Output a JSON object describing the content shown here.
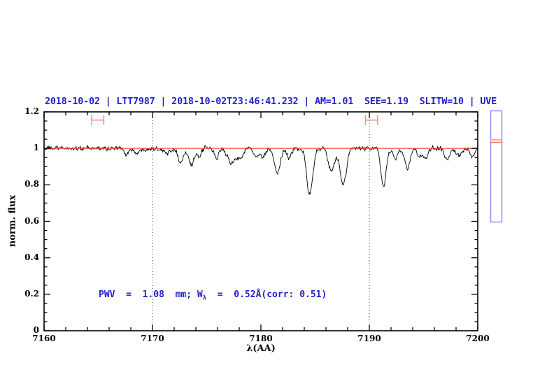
{
  "header": {
    "title": "2018-10-02 | LTT7987 | 2018-10-02T23:46:41.232 | AM=1.01  SEE=1.19  SLITW=10 | UVE"
  },
  "annotation": {
    "prefix": "PWV  =  1.08  mm; W",
    "sub": "λ",
    "suffix": "  =  0.52Å(corr: 0.51)"
  },
  "colors": {
    "title_blue": "#2222cc",
    "annotation_blue": "#2222cc",
    "spectrum_black": "#000000",
    "continuum_red": "#e84545",
    "marker_salmon": "#f08a8a",
    "gridline_gray": "#404040",
    "frame_black": "#000000",
    "panel_border_blue": "#9090f0",
    "panel_line_light": "#ffb4b4",
    "panel_line_strong": "#ff6a6a"
  },
  "chart_data": {
    "type": "line",
    "title": "2018-10-02 | LTT7987 | 2018-10-02T23:46:41.232 | AM=1.01  SEE=1.19  SLITW=10 | UVE",
    "xlabel": "λ(AA)",
    "ylabel": "norm. flux",
    "xlim": [
      7160,
      7200
    ],
    "ylim": [
      0,
      1.2
    ],
    "x_tick_labels": [
      "7160",
      "7170",
      "7180",
      "7190",
      "7200"
    ],
    "x_major_ticks": [
      7160,
      7170,
      7180,
      7190,
      7200
    ],
    "x_minor_step": 2,
    "y_tick_labels": [
      "0",
      "0.2",
      "0.4",
      "0.6",
      "0.8",
      "1",
      "1.2"
    ],
    "y_major_ticks": [
      0,
      0.2,
      0.4,
      0.6,
      0.8,
      1.0,
      1.2
    ],
    "y_minor_step": 0.05,
    "grid": "dotted-vlines-only",
    "dotted_vlines": [
      7170,
      7190
    ],
    "continuum_level": 1.0,
    "noise_sigma": 0.009,
    "sample_step": 0.05,
    "absorption_lines": [
      {
        "wavelength": 7167.6,
        "depth": 0.028,
        "sigma": 0.22
      },
      {
        "wavelength": 7168.6,
        "depth": 0.03,
        "sigma": 0.25
      },
      {
        "wavelength": 7171.3,
        "depth": 0.03,
        "sigma": 0.22
      },
      {
        "wavelength": 7172.6,
        "depth": 0.08,
        "sigma": 0.22
      },
      {
        "wavelength": 7173.6,
        "depth": 0.09,
        "sigma": 0.28
      },
      {
        "wavelength": 7174.3,
        "depth": 0.04,
        "sigma": 0.2
      },
      {
        "wavelength": 7175.9,
        "depth": 0.055,
        "sigma": 0.2
      },
      {
        "wavelength": 7177.3,
        "depth": 0.085,
        "sigma": 0.35
      },
      {
        "wavelength": 7178.1,
        "depth": 0.045,
        "sigma": 0.25
      },
      {
        "wavelength": 7179.6,
        "depth": 0.05,
        "sigma": 0.22
      },
      {
        "wavelength": 7180.2,
        "depth": 0.05,
        "sigma": 0.2
      },
      {
        "wavelength": 7181.5,
        "depth": 0.14,
        "sigma": 0.28
      },
      {
        "wavelength": 7182.6,
        "depth": 0.05,
        "sigma": 0.2
      },
      {
        "wavelength": 7184.5,
        "depth": 0.25,
        "sigma": 0.28
      },
      {
        "wavelength": 7186.5,
        "depth": 0.125,
        "sigma": 0.3
      },
      {
        "wavelength": 7187.6,
        "depth": 0.2,
        "sigma": 0.28
      },
      {
        "wavelength": 7191.3,
        "depth": 0.21,
        "sigma": 0.24
      },
      {
        "wavelength": 7192.4,
        "depth": 0.06,
        "sigma": 0.2
      },
      {
        "wavelength": 7193.5,
        "depth": 0.11,
        "sigma": 0.26
      },
      {
        "wavelength": 7194.6,
        "depth": 0.04,
        "sigma": 0.2
      },
      {
        "wavelength": 7195.2,
        "depth": 0.06,
        "sigma": 0.22
      },
      {
        "wavelength": 7197.2,
        "depth": 0.06,
        "sigma": 0.25
      },
      {
        "wavelength": 7198.3,
        "depth": 0.04,
        "sigma": 0.22
      },
      {
        "wavelength": 7199.5,
        "depth": 0.05,
        "sigma": 0.2
      }
    ],
    "markers": [
      {
        "center": 7164.95,
        "halfwidth": 0.56,
        "y": 1.155,
        "cap_halfheight": 0.027
      },
      {
        "center": 7190.2,
        "halfwidth": 0.56,
        "y": 1.155,
        "cap_halfheight": 0.027
      }
    ],
    "legend": "none"
  },
  "side_panel": {
    "description": "vertical indicator bar right of plot",
    "lines": [
      {
        "frac": 0.26,
        "color_key": "panel_line_light"
      },
      {
        "frac": 0.283,
        "color_key": "panel_line_strong"
      }
    ]
  }
}
